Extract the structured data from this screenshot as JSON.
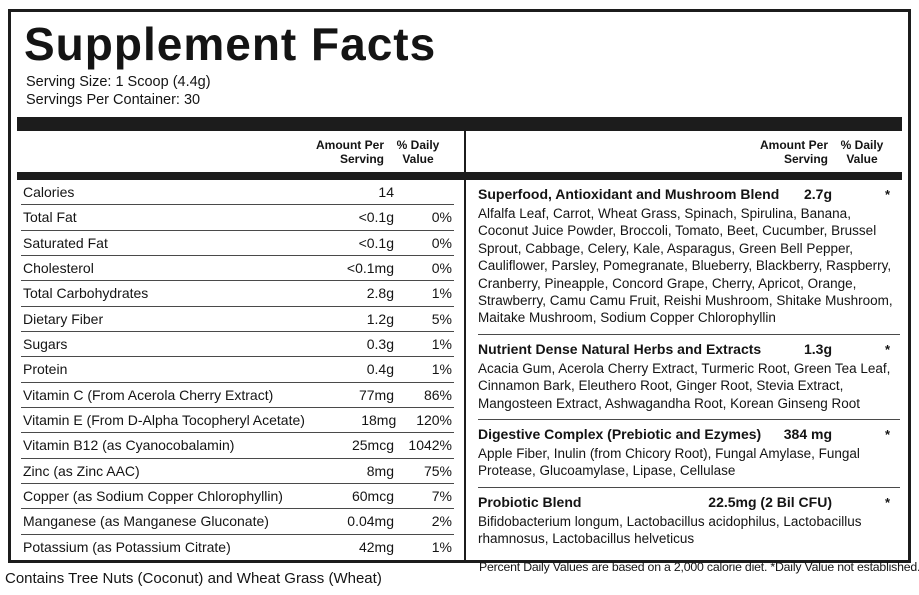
{
  "title": "Supplement Facts",
  "serving": {
    "size": "Serving Size: 1 Scoop (4.4g)",
    "per_container": "Servings Per Container: 30"
  },
  "column_headers": {
    "amount": "Amount Per\nServing",
    "daily_value": "% Daily\nValue"
  },
  "nutrients": [
    {
      "label": "Calories",
      "amount": "14",
      "dv": ""
    },
    {
      "label": "Total Fat",
      "amount": "<0.1g",
      "dv": "0%"
    },
    {
      "label": "Saturated Fat",
      "amount": "<0.1g",
      "dv": "0%"
    },
    {
      "label": "Cholesterol",
      "amount": "<0.1mg",
      "dv": "0%"
    },
    {
      "label": "Total Carbohydrates",
      "amount": "2.8g",
      "dv": "1%"
    },
    {
      "label": "Dietary Fiber",
      "amount": "1.2g",
      "dv": "5%"
    },
    {
      "label": "Sugars",
      "amount": "0.3g",
      "dv": "1%"
    },
    {
      "label": "Protein",
      "amount": "0.4g",
      "dv": "1%"
    },
    {
      "label": "Vitamin C (From Acerola Cherry Extract)",
      "amount": "77mg",
      "dv": "86%"
    },
    {
      "label": "Vitamin E (From D-Alpha Tocopheryl Acetate)",
      "amount": "18mg",
      "dv": "120%"
    },
    {
      "label": "Vitamin B12 (as Cyanocobalamin)",
      "amount": "25mcg",
      "dv": "1042%"
    },
    {
      "label": "Zinc (as Zinc AAC)",
      "amount": "8mg",
      "dv": "75%"
    },
    {
      "label": "Copper (as Sodium Copper Chlorophyllin)",
      "amount": "60mcg",
      "dv": "7%"
    },
    {
      "label": "Manganese (as Manganese Gluconate)",
      "amount": "0.04mg",
      "dv": "2%"
    },
    {
      "label": "Potassium (as Potassium Citrate)",
      "amount": "42mg",
      "dv": "1%"
    }
  ],
  "blends": [
    {
      "name": "Superfood, Antioxidant and Mushroom Blend",
      "amount": "2.7g",
      "dv": "*",
      "ingredients": "Alfalfa Leaf, Carrot, Wheat Grass, Spinach, Spirulina, Banana, Coconut Juice Powder, Broccoli, Tomato, Beet, Cucumber, Brussel Sprout, Cabbage, Celery, Kale, Asparagus, Green Bell Pepper, Cauliflower, Parsley, Pomegranate, Blueberry, Blackberry, Raspberry, Cranberry, Pineapple, Concord Grape, Cherry, Apricot, Orange, Strawberry, Camu Camu Fruit, Reishi Mushroom, Shitake Mushroom, Maitake Mushroom, Sodium Copper Chlorophyllin"
    },
    {
      "name": "Nutrient Dense Natural Herbs and Extracts",
      "amount": "1.3g",
      "dv": "*",
      "ingredients": "Acacia Gum, Acerola Cherry Extract, Turmeric Root, Green Tea Leaf, Cinnamon Bark, Eleuthero Root, Ginger Root, Stevia Extract, Mangosteen Extract, Ashwagandha Root, Korean Ginseng Root"
    },
    {
      "name": "Digestive Complex (Prebiotic and Ezymes)",
      "amount": "384 mg",
      "dv": "*",
      "ingredients": "Apple Fiber, Inulin (from Chicory Root), Fungal Amylase, Fungal Protease, Glucoamylase, Lipase, Cellulase"
    },
    {
      "name": "Probiotic Blend",
      "amount": "22.5mg (2 Bil CFU)",
      "dv": "*",
      "ingredients": "Bifidobacterium longum, Lactobacillus acidophilus, Lactobacillus rhamnosus, Lactobacillus helveticus"
    }
  ],
  "footnote": "Percent Daily Values are based on a 2,000 calorie diet. *Daily Value not established.",
  "allergen": "Contains Tree Nuts (Coconut) and Wheat Grass (Wheat)",
  "colors": {
    "bar": "#1c1c1c",
    "border": "#1c1c1c",
    "separator": "#4a4a4a"
  }
}
